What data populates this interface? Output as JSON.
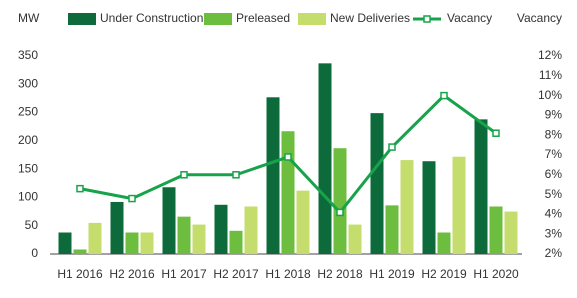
{
  "chart_data": {
    "type": "bar_line",
    "y_label": "MW",
    "y2_label": "Vacancy",
    "categories": [
      "H1 2016",
      "H2 2016",
      "H1 2017",
      "H2 2017",
      "H1 2018",
      "H2 2018",
      "H1 2019",
      "H2 2019",
      "H1 2020"
    ],
    "series": [
      {
        "name": "Under Construction",
        "color": "#0d6b3b",
        "type": "bar",
        "values": [
          38,
          92,
          118,
          87,
          277,
          337,
          249,
          164,
          238
        ]
      },
      {
        "name": "Preleased",
        "color": "#6dbd3f",
        "type": "bar",
        "values": [
          8,
          38,
          66,
          41,
          217,
          187,
          86,
          38,
          84
        ]
      },
      {
        "name": "New Deliveries",
        "color": "#c4dd6c",
        "type": "bar",
        "values": [
          55,
          38,
          52,
          84,
          112,
          52,
          166,
          172,
          75
        ]
      },
      {
        "name": "Vacancy",
        "color": "#16a34a",
        "type": "line",
        "axis": "y2",
        "values": [
          5.3,
          4.8,
          6.0,
          6.0,
          6.9,
          4.1,
          7.4,
          10.0,
          8.1
        ]
      }
    ],
    "ylim": [
      0,
      350
    ],
    "yticks": [
      0,
      50,
      100,
      150,
      200,
      250,
      300,
      350
    ],
    "y2lim": [
      2,
      12
    ],
    "y2ticks": [
      {
        "value": 2,
        "label": "2%"
      },
      {
        "value": 3,
        "label": "3%"
      },
      {
        "value": 4,
        "label": "4%"
      },
      {
        "value": 5,
        "label": "5%"
      },
      {
        "value": 6,
        "label": "6%"
      },
      {
        "value": 7,
        "label": "7%"
      },
      {
        "value": 8,
        "label": "8%"
      },
      {
        "value": 9,
        "label": "9%"
      },
      {
        "value": 10,
        "label": "10%"
      },
      {
        "value": 11,
        "label": "11%"
      },
      {
        "value": 12,
        "label": "12%"
      }
    ],
    "grid": false
  }
}
